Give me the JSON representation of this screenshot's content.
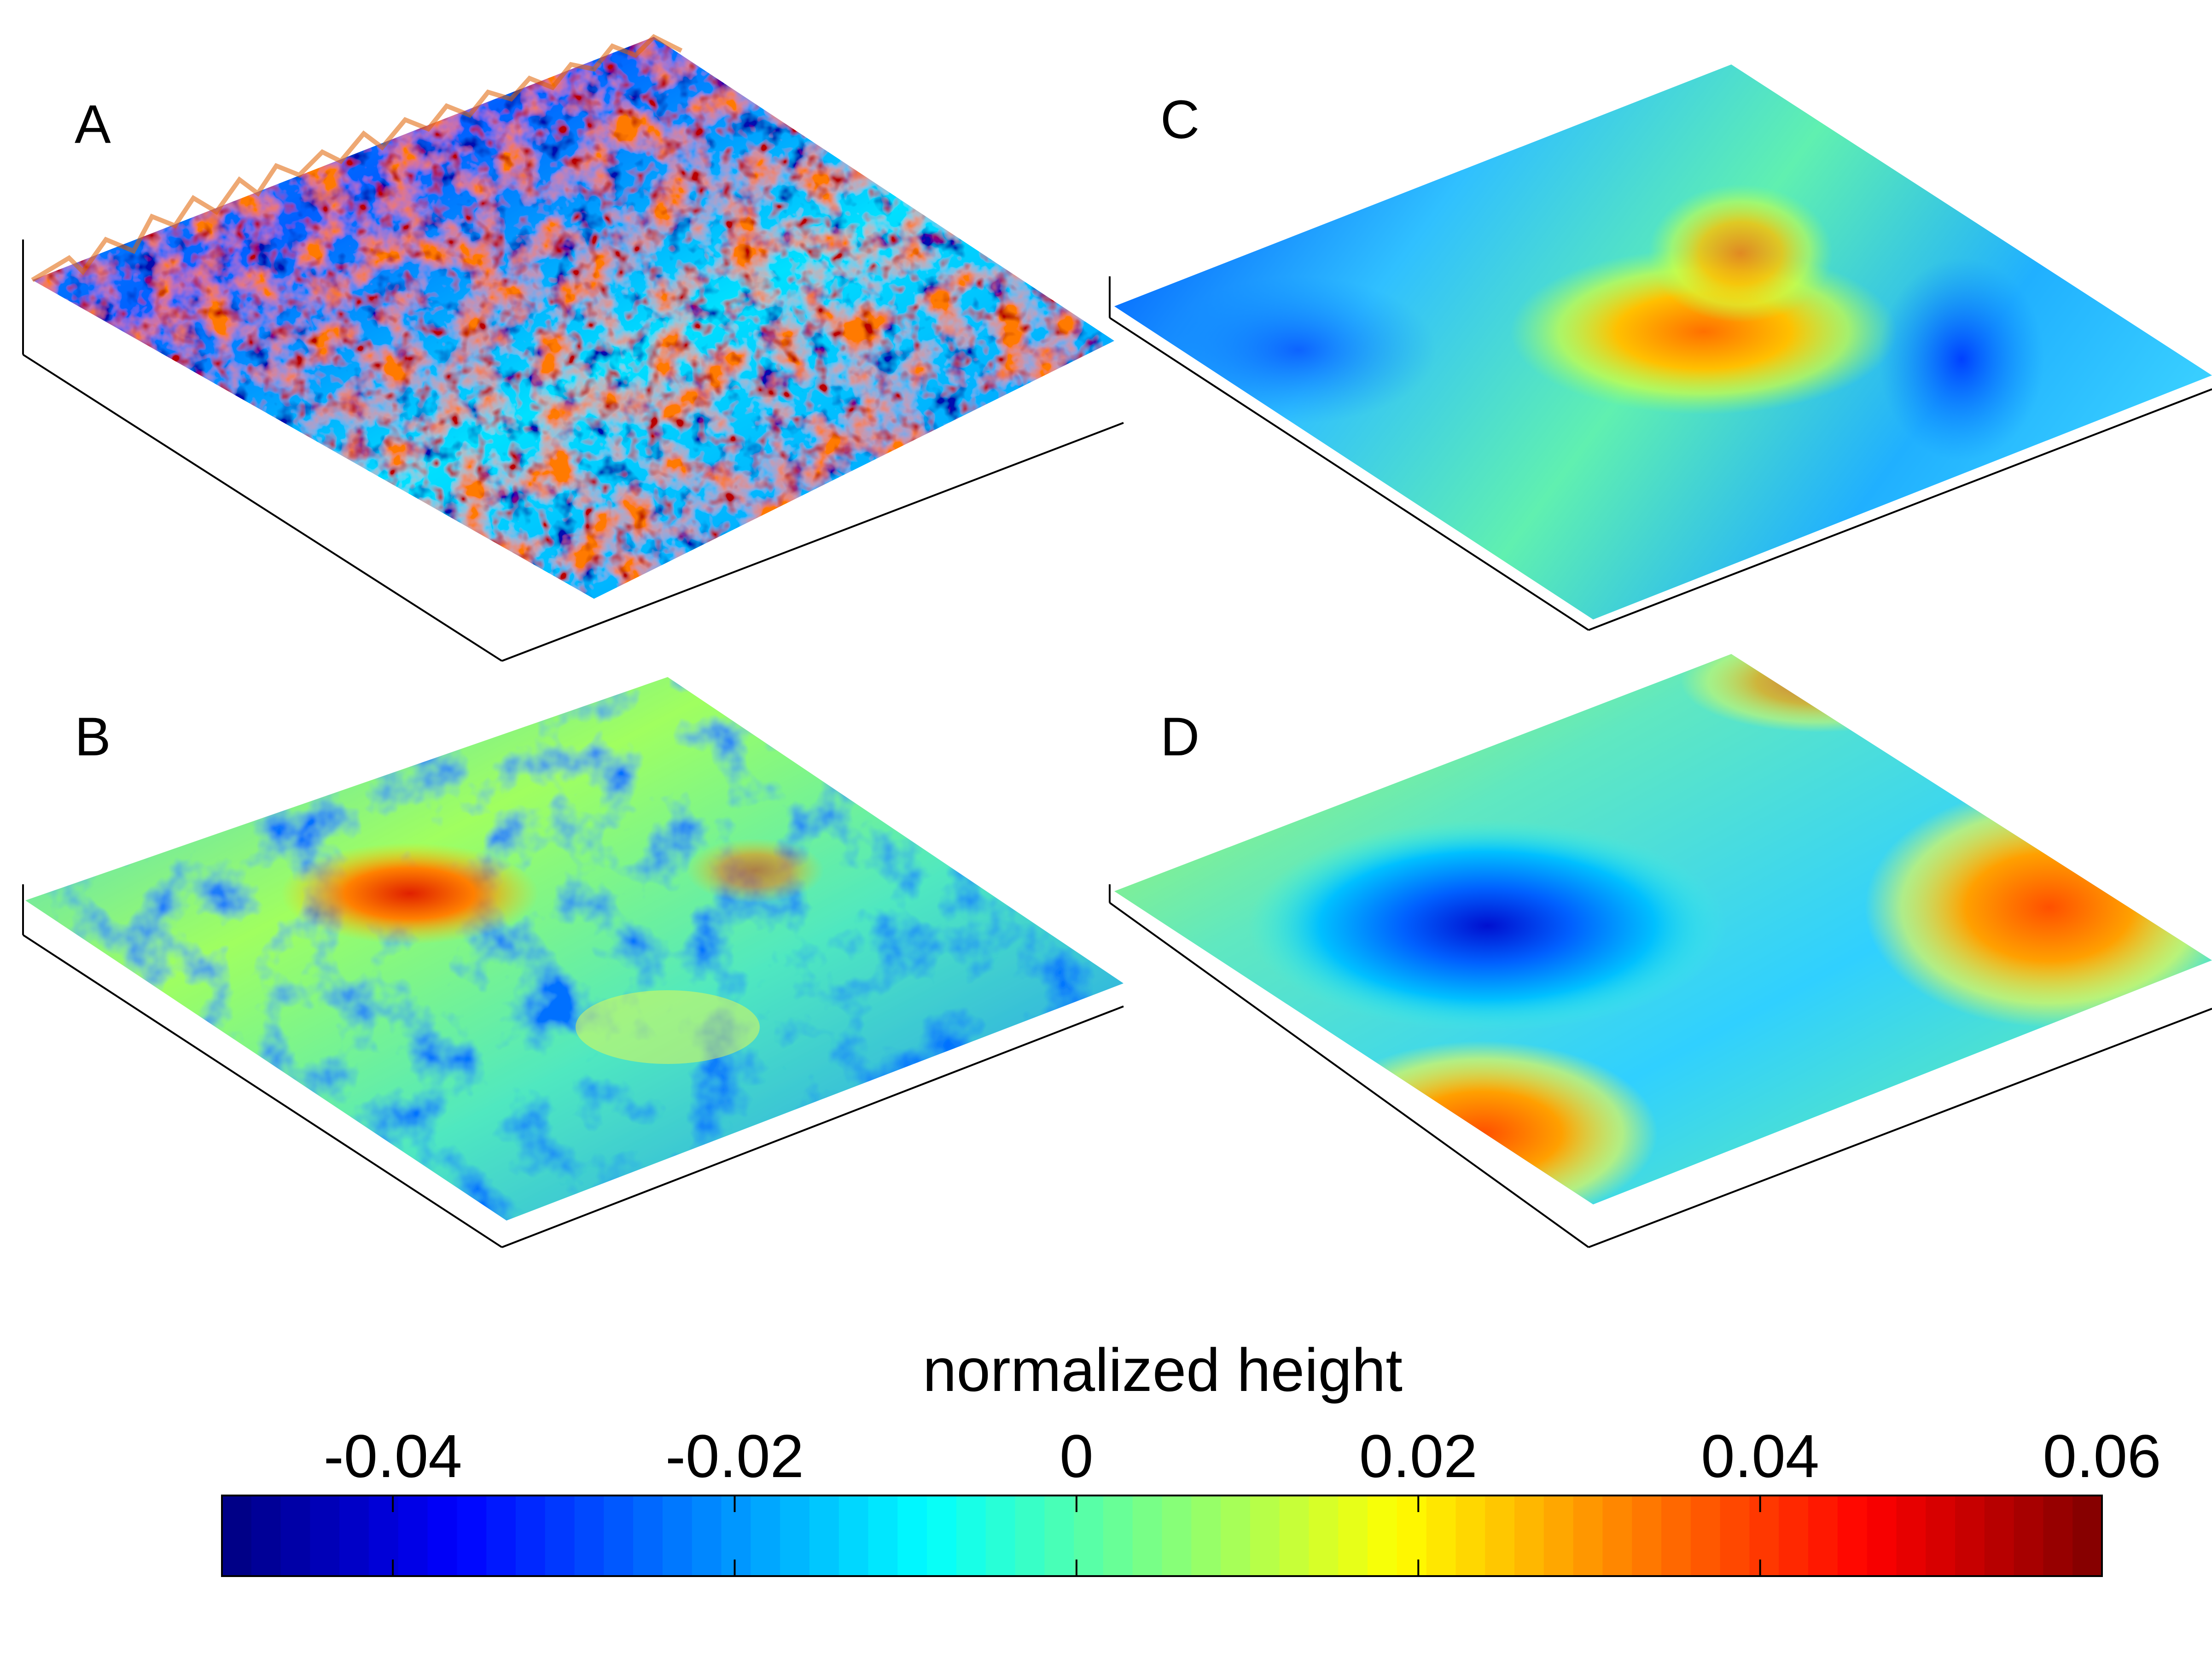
{
  "panels": [
    {
      "label": "A",
      "roughness": "high",
      "relief": "tall",
      "dominant_colors": [
        "#00008f",
        "#0080ff",
        "#00ffff",
        "#ffff00",
        "#ff8000",
        "#b00000"
      ]
    },
    {
      "label": "B",
      "roughness": "medium",
      "relief": "moderate",
      "dominant_colors": [
        "#0060ff",
        "#00dfff",
        "#ffff40",
        "#ff6000"
      ]
    },
    {
      "label": "C",
      "roughness": "low",
      "relief": "low",
      "dominant_colors": [
        "#0050ff",
        "#00dfff",
        "#ffef00",
        "#ff8000"
      ]
    },
    {
      "label": "D",
      "roughness": "smooth",
      "relief": "low",
      "dominant_colors": [
        "#0020d0",
        "#00bfff",
        "#ffff40",
        "#ff6000"
      ]
    }
  ],
  "colorbar": {
    "title": "normalized height",
    "colormap": "jet",
    "range": [
      -0.05,
      0.06
    ],
    "ticks": [
      {
        "value": -0.04,
        "label": "-0.04"
      },
      {
        "value": -0.02,
        "label": "-0.02"
      },
      {
        "value": 0,
        "label": "0"
      },
      {
        "value": 0.02,
        "label": "0.02"
      },
      {
        "value": 0.04,
        "label": "0.04"
      },
      {
        "value": 0.06,
        "label": "0.06"
      }
    ]
  }
}
